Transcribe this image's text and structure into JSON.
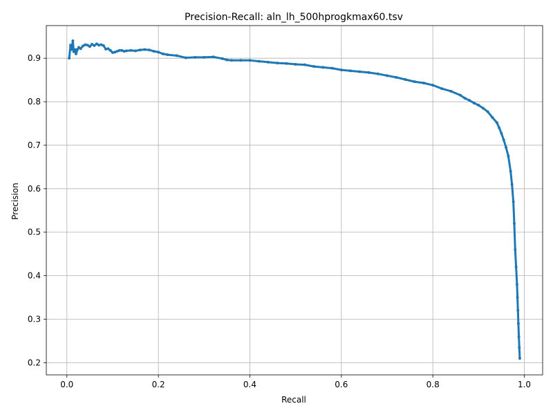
{
  "chart_data": {
    "type": "line",
    "title": "Precision-Recall: aln_lh_500hprogkmax60.tsv",
    "xlabel": "Recall",
    "ylabel": "Precision",
    "xlim": [
      -0.045,
      1.04
    ],
    "ylim": [
      0.172,
      0.975
    ],
    "xticks": [
      0.0,
      0.2,
      0.4,
      0.6,
      0.8,
      1.0
    ],
    "xtick_labels": [
      "0.0",
      "0.2",
      "0.4",
      "0.6",
      "0.8",
      "1.0"
    ],
    "yticks": [
      0.2,
      0.3,
      0.4,
      0.5,
      0.6,
      0.7,
      0.8,
      0.9
    ],
    "ytick_labels": [
      "0.2",
      "0.3",
      "0.4",
      "0.5",
      "0.6",
      "0.7",
      "0.8",
      "0.9"
    ],
    "grid": true,
    "color": "#1f77b4",
    "series": [
      {
        "x": [
          0.005,
          0.008,
          0.01,
          0.013,
          0.015,
          0.018,
          0.02,
          0.023,
          0.026,
          0.03,
          0.035,
          0.04,
          0.045,
          0.05,
          0.055,
          0.06,
          0.065,
          0.07,
          0.075,
          0.08,
          0.085,
          0.09,
          0.095,
          0.1,
          0.105,
          0.11,
          0.115,
          0.12,
          0.125,
          0.13,
          0.14,
          0.15,
          0.16,
          0.17,
          0.18,
          0.19,
          0.2,
          0.21,
          0.22,
          0.24,
          0.26,
          0.28,
          0.3,
          0.32,
          0.34,
          0.35,
          0.36,
          0.38,
          0.4,
          0.42,
          0.44,
          0.46,
          0.48,
          0.5,
          0.52,
          0.54,
          0.56,
          0.58,
          0.6,
          0.62,
          0.64,
          0.66,
          0.68,
          0.7,
          0.72,
          0.74,
          0.76,
          0.78,
          0.8,
          0.82,
          0.84,
          0.86,
          0.87,
          0.88,
          0.89,
          0.9,
          0.91,
          0.92,
          0.93,
          0.94,
          0.945,
          0.95,
          0.955,
          0.96,
          0.965,
          0.97,
          0.973,
          0.976,
          0.978,
          0.98,
          0.982,
          0.984,
          0.985,
          0.986,
          0.987,
          0.988,
          0.989,
          0.99
        ],
        "y": [
          0.9,
          0.93,
          0.92,
          0.94,
          0.915,
          0.92,
          0.91,
          0.92,
          0.925,
          0.922,
          0.928,
          0.931,
          0.93,
          0.927,
          0.932,
          0.929,
          0.933,
          0.93,
          0.931,
          0.929,
          0.921,
          0.922,
          0.918,
          0.913,
          0.914,
          0.916,
          0.918,
          0.918,
          0.916,
          0.917,
          0.918,
          0.917,
          0.919,
          0.92,
          0.919,
          0.916,
          0.914,
          0.91,
          0.908,
          0.906,
          0.901,
          0.902,
          0.902,
          0.903,
          0.899,
          0.896,
          0.895,
          0.895,
          0.895,
          0.893,
          0.891,
          0.889,
          0.888,
          0.886,
          0.885,
          0.881,
          0.879,
          0.877,
          0.873,
          0.871,
          0.869,
          0.867,
          0.864,
          0.86,
          0.856,
          0.851,
          0.846,
          0.843,
          0.838,
          0.83,
          0.824,
          0.815,
          0.808,
          0.803,
          0.797,
          0.792,
          0.785,
          0.777,
          0.764,
          0.752,
          0.74,
          0.727,
          0.712,
          0.695,
          0.675,
          0.64,
          0.61,
          0.57,
          0.52,
          0.46,
          0.42,
          0.38,
          0.35,
          0.32,
          0.29,
          0.26,
          0.235,
          0.21
        ]
      }
    ]
  }
}
